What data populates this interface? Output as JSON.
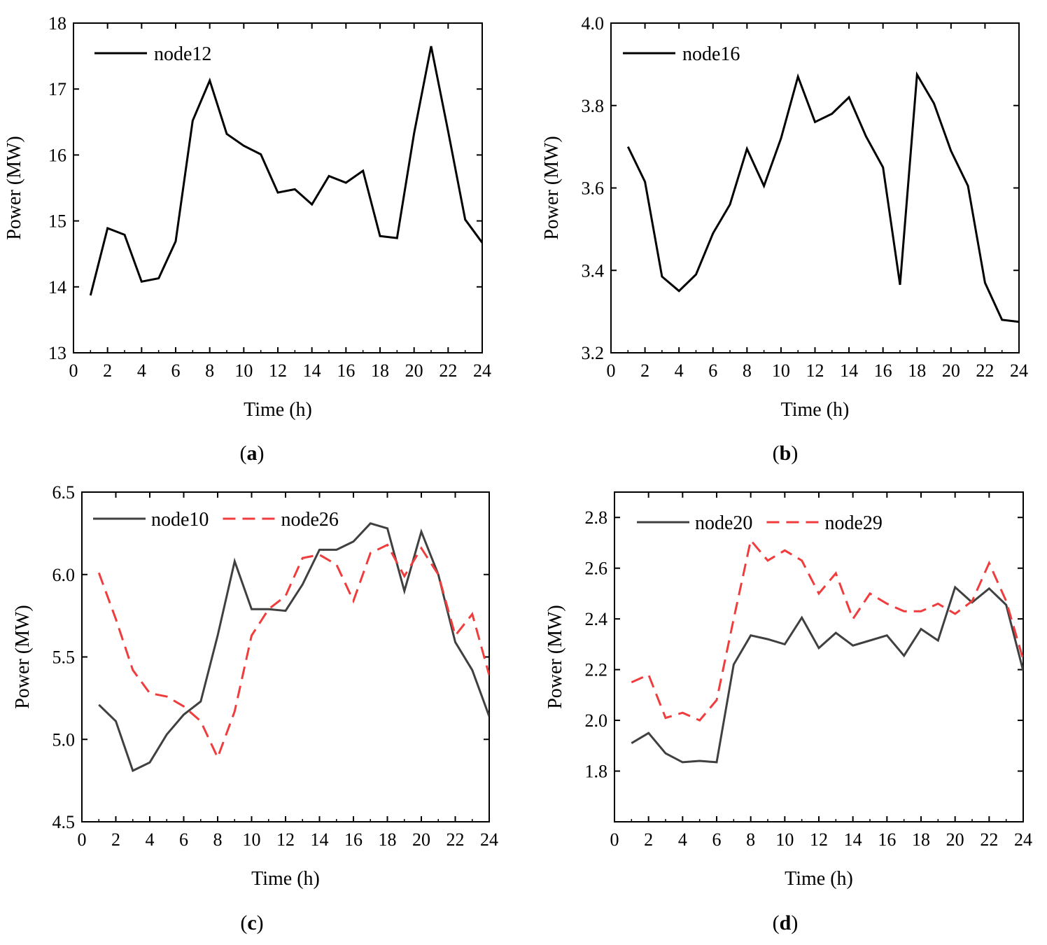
{
  "chart_data": [
    {
      "type": "line",
      "panel": "a",
      "caption_letter": "a",
      "xlabel": "Time (h)",
      "ylabel": "Power (MW)",
      "xlim": [
        0,
        24
      ],
      "ylim": [
        13,
        18
      ],
      "xticks": [
        0,
        2,
        4,
        6,
        8,
        10,
        12,
        14,
        16,
        18,
        20,
        22,
        24
      ],
      "yticks": [
        13,
        14,
        15,
        16,
        17,
        18
      ],
      "ytick_labels": [
        "13",
        "14",
        "15",
        "16",
        "17",
        "18"
      ],
      "legend_position": "top-left",
      "series": [
        {
          "name": "node12",
          "color": "#000000",
          "style": "solid",
          "x": [
            1,
            2,
            3,
            4,
            5,
            6,
            7,
            8,
            9,
            10,
            11,
            12,
            13,
            14,
            15,
            16,
            17,
            18,
            19,
            20,
            21,
            22,
            23,
            24
          ],
          "values": [
            13.87,
            14.89,
            14.79,
            14.08,
            14.13,
            14.69,
            16.52,
            17.13,
            16.32,
            16.14,
            16.01,
            15.43,
            15.48,
            15.25,
            15.68,
            15.58,
            15.76,
            14.77,
            14.74,
            16.33,
            17.65,
            16.36,
            15.02,
            14.67
          ]
        }
      ]
    },
    {
      "type": "line",
      "panel": "b",
      "caption_letter": "b",
      "xlabel": "Time (h)",
      "ylabel": "Power (MW)",
      "xlim": [
        0,
        24
      ],
      "ylim": [
        3.2,
        4.0
      ],
      "xticks": [
        0,
        2,
        4,
        6,
        8,
        10,
        12,
        14,
        16,
        18,
        20,
        22,
        24
      ],
      "yticks": [
        3.2,
        3.4,
        3.6,
        3.8,
        4.0
      ],
      "ytick_labels": [
        "3.2",
        "3.4",
        "3.6",
        "3.8",
        "4.0"
      ],
      "legend_position": "top-left",
      "series": [
        {
          "name": "node16",
          "color": "#000000",
          "style": "solid",
          "x": [
            1,
            2,
            3,
            4,
            5,
            6,
            7,
            8,
            9,
            10,
            11,
            12,
            13,
            14,
            15,
            16,
            17,
            18,
            19,
            20,
            21,
            22,
            23,
            24
          ],
          "values": [
            3.7,
            3.615,
            3.385,
            3.35,
            3.39,
            3.49,
            3.56,
            3.695,
            3.605,
            3.72,
            3.87,
            3.76,
            3.78,
            3.82,
            3.725,
            3.65,
            3.365,
            3.875,
            3.805,
            3.69,
            3.605,
            3.37,
            3.28,
            3.275
          ]
        }
      ]
    },
    {
      "type": "line",
      "panel": "c",
      "caption_letter": "c",
      "xlabel": "Time (h)",
      "ylabel": "Power (MW)",
      "xlim": [
        0,
        24
      ],
      "ylim": [
        4.5,
        6.5
      ],
      "xticks": [
        0,
        2,
        4,
        6,
        8,
        10,
        12,
        14,
        16,
        18,
        20,
        22,
        24
      ],
      "yticks": [
        4.5,
        5.0,
        5.5,
        6.0,
        6.5
      ],
      "ytick_labels": [
        "4.5",
        "5.0",
        "5.5",
        "6.0",
        "6.5"
      ],
      "legend_position": "top",
      "series": [
        {
          "name": "node10",
          "color": "#404040",
          "style": "solid",
          "x": [
            1,
            2,
            3,
            4,
            5,
            6,
            7,
            8,
            9,
            10,
            11,
            12,
            13,
            14,
            15,
            16,
            17,
            18,
            19,
            20,
            21,
            22,
            23,
            24
          ],
          "values": [
            5.21,
            5.11,
            4.81,
            4.86,
            5.03,
            5.15,
            5.23,
            5.63,
            6.08,
            5.79,
            5.79,
            5.78,
            5.94,
            6.15,
            6.15,
            6.2,
            6.31,
            6.28,
            5.9,
            6.26,
            6.0,
            5.59,
            5.42,
            5.14
          ]
        },
        {
          "name": "node26",
          "color": "#f03c3c",
          "style": "dashed",
          "x": [
            1,
            2,
            3,
            4,
            5,
            6,
            7,
            8,
            9,
            10,
            11,
            12,
            13,
            14,
            15,
            16,
            17,
            18,
            19,
            20,
            21,
            22,
            23,
            24
          ],
          "values": [
            6.01,
            5.73,
            5.42,
            5.28,
            5.26,
            5.2,
            5.11,
            4.89,
            5.17,
            5.63,
            5.79,
            5.87,
            6.1,
            6.12,
            6.06,
            5.84,
            6.13,
            6.18,
            5.99,
            6.16,
            6.0,
            5.63,
            5.76,
            5.39
          ]
        }
      ]
    },
    {
      "type": "line",
      "panel": "d",
      "caption_letter": "d",
      "xlabel": "Time (h)",
      "ylabel": "Power (MW)",
      "xlim": [
        0,
        24
      ],
      "ylim": [
        1.6,
        2.9
      ],
      "xticks": [
        0,
        2,
        4,
        6,
        8,
        10,
        12,
        14,
        16,
        18,
        20,
        22,
        24
      ],
      "yticks": [
        1.8,
        2.0,
        2.2,
        2.4,
        2.6,
        2.8
      ],
      "ytick_labels": [
        "1.8",
        "2.0",
        "2.2",
        "2.4",
        "2.6",
        "2.8"
      ],
      "legend_position": "top",
      "series": [
        {
          "name": "node20",
          "color": "#404040",
          "style": "solid",
          "x": [
            1,
            2,
            3,
            4,
            5,
            6,
            7,
            8,
            9,
            10,
            11,
            12,
            13,
            14,
            15,
            16,
            17,
            18,
            19,
            20,
            21,
            22,
            23,
            24
          ],
          "values": [
            1.91,
            1.95,
            1.87,
            1.835,
            1.84,
            1.835,
            2.22,
            2.335,
            2.32,
            2.3,
            2.405,
            2.285,
            2.345,
            2.295,
            2.315,
            2.335,
            2.255,
            2.36,
            2.315,
            2.525,
            2.465,
            2.52,
            2.455,
            2.195
          ]
        },
        {
          "name": "node29",
          "color": "#f03c3c",
          "style": "dashed",
          "x": [
            1,
            2,
            3,
            4,
            5,
            6,
            7,
            8,
            9,
            10,
            11,
            12,
            13,
            14,
            15,
            16,
            17,
            18,
            19,
            20,
            21,
            22,
            23,
            24
          ],
          "values": [
            2.15,
            2.18,
            2.01,
            2.03,
            2.0,
            2.08,
            2.4,
            2.71,
            2.63,
            2.67,
            2.63,
            2.5,
            2.58,
            2.4,
            2.5,
            2.46,
            2.43,
            2.43,
            2.46,
            2.42,
            2.47,
            2.62,
            2.47,
            2.24
          ]
        }
      ]
    }
  ]
}
